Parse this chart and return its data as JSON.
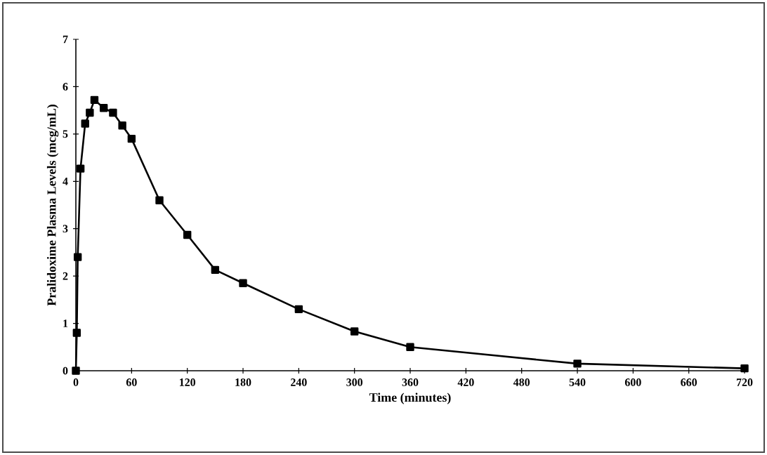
{
  "chart_data": {
    "type": "line",
    "xlabel": "Time (minutes)",
    "ylabel": "Pralidoxime Plasma Levels (mcg/mL)",
    "x": [
      0,
      1,
      2,
      5,
      10,
      15,
      20,
      30,
      40,
      50,
      60,
      90,
      120,
      150,
      180,
      240,
      300,
      360,
      540,
      720
    ],
    "series": [
      {
        "color": "#000000",
        "values": [
          0,
          0.8,
          2.4,
          4.27,
          5.22,
          5.45,
          5.72,
          5.55,
          5.45,
          5.18,
          4.9,
          3.6,
          2.87,
          2.13,
          1.85,
          1.3,
          0.83,
          0.5,
          0.15,
          0.05
        ]
      }
    ],
    "xlim": [
      0,
      720
    ],
    "xticks": [
      0,
      60,
      120,
      180,
      240,
      300,
      360,
      420,
      480,
      540,
      600,
      660,
      720
    ],
    "ylim": [
      0,
      7
    ],
    "yticks": [
      0,
      1,
      2,
      3,
      4,
      5,
      6,
      7
    ],
    "grid": false,
    "marker": "square",
    "line_style": "solid"
  }
}
